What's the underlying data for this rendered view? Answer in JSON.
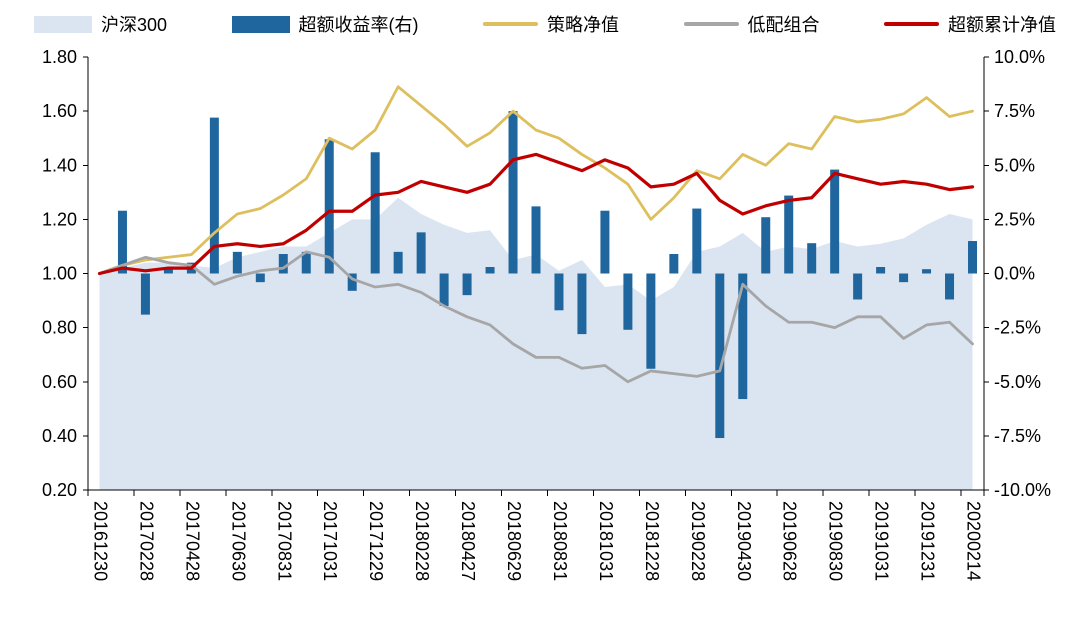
{
  "legend": {
    "items": [
      {
        "label": "沪深300",
        "swatch": "area"
      },
      {
        "label": "超额收益率(右)",
        "swatch": "bar"
      },
      {
        "label": "策略净值",
        "swatch": "line"
      },
      {
        "label": "低配组合",
        "swatch": "line"
      },
      {
        "label": "超额累计净值",
        "swatch": "line"
      }
    ]
  },
  "chart_data": {
    "type": "combo",
    "n_points": 39,
    "x_tick_labels": [
      "20161230",
      "20170228",
      "20170428",
      "20170630",
      "20170831",
      "20171031",
      "20171229",
      "20180228",
      "20180427",
      "20180629",
      "20180831",
      "20181031",
      "20181228",
      "20190228",
      "20190430",
      "20190628",
      "20190830",
      "20191031",
      "20191231",
      "20200214"
    ],
    "left_axis": {
      "min": 0.2,
      "max": 1.8,
      "step": 0.2,
      "tick_labels": [
        "1.80",
        "1.60",
        "1.40",
        "1.20",
        "1.00",
        "0.80",
        "0.60",
        "0.40",
        "0.20"
      ]
    },
    "right_axis": {
      "min": -10,
      "max": 10,
      "step": 2.5,
      "tick_labels": [
        "10.0%",
        "7.5%",
        "5.0%",
        "2.5%",
        "0.0%",
        "-2.5%",
        "-5.0%",
        "-7.5%",
        "-10.0%"
      ]
    },
    "grid": false,
    "legend_position": "top",
    "series": [
      {
        "key": "hs300",
        "name": "沪深300",
        "type": "area",
        "axis": "left",
        "color": "#dbe5f1",
        "values": [
          1.0,
          1.02,
          1.04,
          1.04,
          1.03,
          1.02,
          1.06,
          1.08,
          1.1,
          1.1,
          1.15,
          1.2,
          1.2,
          1.28,
          1.22,
          1.18,
          1.15,
          1.16,
          1.05,
          1.07,
          1.01,
          1.05,
          0.95,
          0.96,
          0.9,
          0.95,
          1.08,
          1.1,
          1.15,
          1.08,
          1.1,
          1.09,
          1.12,
          1.1,
          1.11,
          1.13,
          1.18,
          1.22,
          1.2
        ]
      },
      {
        "key": "excess_return",
        "name": "超额收益率(右)",
        "type": "bar",
        "axis": "right",
        "color": "#1f669e",
        "values": [
          0.0,
          2.9,
          -1.9,
          0.3,
          0.5,
          7.2,
          1.0,
          -0.4,
          0.9,
          1.0,
          6.2,
          -0.8,
          5.6,
          1.0,
          1.9,
          -1.5,
          -1.0,
          0.3,
          7.5,
          3.1,
          -1.7,
          -2.8,
          2.9,
          -2.6,
          -4.4,
          0.9,
          3.0,
          -7.6,
          -5.8,
          2.6,
          3.6,
          1.4,
          4.8,
          -1.2,
          0.3,
          -0.4,
          0.2,
          -1.2,
          1.5
        ]
      },
      {
        "key": "strategy_nav",
        "name": "策略净值",
        "type": "line",
        "axis": "left",
        "color": "#debf5e",
        "values": [
          1.0,
          1.03,
          1.05,
          1.06,
          1.07,
          1.15,
          1.22,
          1.24,
          1.29,
          1.35,
          1.5,
          1.46,
          1.53,
          1.69,
          1.62,
          1.55,
          1.47,
          1.52,
          1.6,
          1.53,
          1.5,
          1.44,
          1.39,
          1.33,
          1.2,
          1.28,
          1.38,
          1.35,
          1.44,
          1.4,
          1.48,
          1.46,
          1.58,
          1.56,
          1.57,
          1.59,
          1.65,
          1.58,
          1.6
        ]
      },
      {
        "key": "underweight_portfolio",
        "name": "低配组合",
        "type": "line",
        "axis": "left",
        "color": "#a6a6a6",
        "values": [
          1.0,
          1.03,
          1.06,
          1.04,
          1.03,
          0.96,
          0.99,
          1.01,
          1.02,
          1.08,
          1.06,
          0.98,
          0.95,
          0.96,
          0.93,
          0.88,
          0.84,
          0.81,
          0.74,
          0.69,
          0.69,
          0.65,
          0.66,
          0.6,
          0.64,
          0.63,
          0.62,
          0.64,
          0.96,
          0.88,
          0.82,
          0.82,
          0.8,
          0.84,
          0.84,
          0.76,
          0.81,
          0.82,
          0.74
        ]
      },
      {
        "key": "excess_cum_nav",
        "name": "超额累计净值",
        "type": "line",
        "axis": "left",
        "color": "#c00000",
        "values": [
          1.0,
          1.02,
          1.01,
          1.02,
          1.02,
          1.1,
          1.11,
          1.1,
          1.11,
          1.16,
          1.23,
          1.23,
          1.29,
          1.3,
          1.34,
          1.32,
          1.3,
          1.33,
          1.42,
          1.44,
          1.41,
          1.38,
          1.42,
          1.39,
          1.32,
          1.33,
          1.37,
          1.27,
          1.22,
          1.25,
          1.27,
          1.28,
          1.37,
          1.35,
          1.33,
          1.34,
          1.33,
          1.31,
          1.32
        ]
      }
    ]
  }
}
